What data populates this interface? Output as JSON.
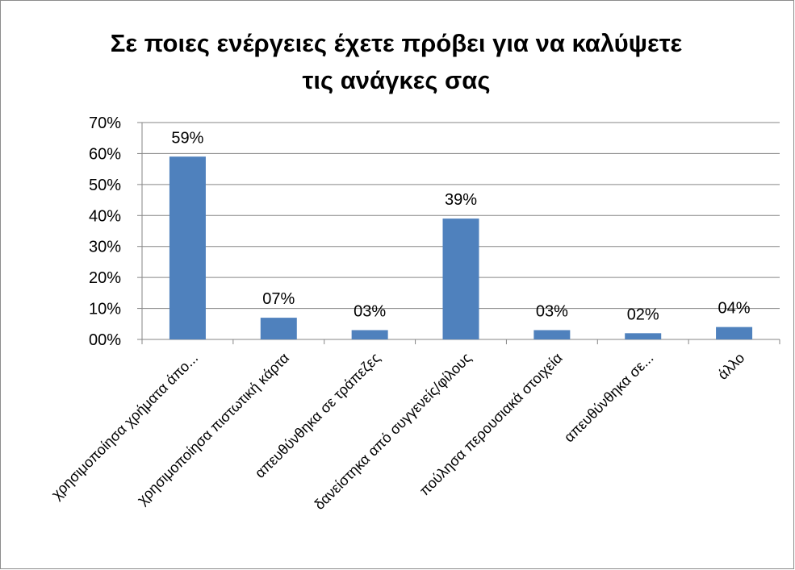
{
  "chart_data": {
    "type": "bar",
    "title_lines": [
      "Σε ποιες ενέργειες έχετε πρόβει για να καλύψετε",
      "τις ανάγκες σας"
    ],
    "categories": [
      "χρησιμοποίησα χρήματα άπο...",
      "χρησιμοποίησα πιστωτική κάρτα",
      "απευθύνθηκα σε τράπεζες",
      "δανείστηκα από συγγενείς/φίλους",
      "πούλησα περουσιακά στοιχεία",
      "απευθύνθηκα σε...",
      "άλλο"
    ],
    "values": [
      59,
      7,
      3,
      39,
      3,
      2,
      4
    ],
    "data_labels": [
      "59%",
      "07%",
      "03%",
      "39%",
      "03%",
      "02%",
      "04%"
    ],
    "y_ticks": [
      "00%",
      "10%",
      "20%",
      "30%",
      "40%",
      "50%",
      "60%",
      "70%"
    ],
    "ylim": [
      0,
      70
    ],
    "grid": true,
    "legend": "none",
    "bar_color": "#4f81bd"
  }
}
